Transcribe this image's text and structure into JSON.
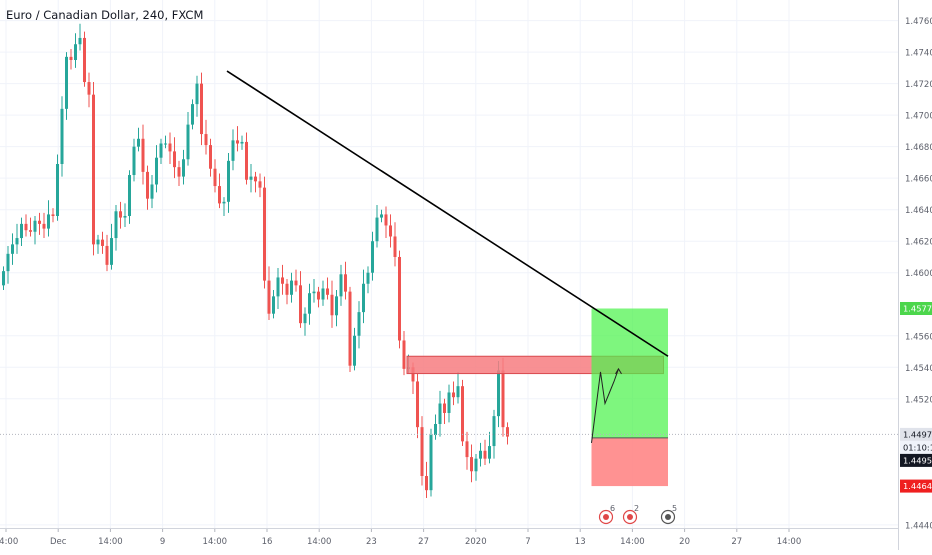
{
  "header": {
    "title": "Euro / Canadian Dollar, 240, FXCM"
  },
  "colors": {
    "up": "#26a69a",
    "down": "#ef5350",
    "grid": "#f0f3fa",
    "axis_text": "#5d606b",
    "trendline": "#000000",
    "resistance_zone": "#f77c80",
    "target_zone": "#4cf24c",
    "stop_zone": "#ff7f7f",
    "label_green": "#4cd64c",
    "label_red": "#ef1f1f",
    "label_dark": "#131722"
  },
  "price_labels": {
    "target": "1.45773",
    "current": "1.44974",
    "countdown": "01:10:16",
    "entry": "1.44952",
    "stop": "1.44646"
  },
  "events": [
    {
      "icon": "dividend-event-icon",
      "count": "6"
    },
    {
      "icon": "earnings-event-icon",
      "count": "2"
    },
    {
      "icon": "news-event-icon",
      "count": "5"
    }
  ],
  "chart_data": {
    "type": "candlestick",
    "symbol": "Euro / Canadian Dollar",
    "interval": "240",
    "source": "FXCM",
    "ylim": [
      1.4438,
      1.4768
    ],
    "y_ticks": [
      "1.47600",
      "1.47400",
      "1.47200",
      "1.47000",
      "1.46800",
      "1.46600",
      "1.46400",
      "1.46200",
      "1.46000",
      "1.45600",
      "1.45400",
      "1.45200",
      "1.44400"
    ],
    "x_ticks": [
      "14:00",
      "Dec",
      "14:00",
      "9",
      "14:00",
      "16",
      "14:00",
      "23",
      "27",
      "2020",
      "7",
      "13",
      "14:00",
      "20",
      "27",
      "14:00"
    ],
    "closes": [
      1.4601,
      1.4612,
      1.4618,
      1.4622,
      1.4631,
      1.4627,
      1.4626,
      1.4633,
      1.4631,
      1.4628,
      1.4637,
      1.4636,
      1.4669,
      1.4704,
      1.4737,
      1.4735,
      1.4745,
      1.4749,
      1.4721,
      1.4713,
      1.4618,
      1.4621,
      1.4617,
      1.4605,
      1.4622,
      1.4639,
      1.4635,
      1.4636,
      1.4662,
      1.468,
      1.4685,
      1.4664,
      1.4647,
      1.4656,
      1.4673,
      1.4682,
      1.4682,
      1.4677,
      1.4667,
      1.4661,
      1.4672,
      1.4694,
      1.4707,
      1.472,
      1.4688,
      1.4681,
      1.4666,
      1.4655,
      1.4644,
      1.4645,
      1.4671,
      1.4684,
      1.4682,
      1.4683,
      1.4659,
      1.4661,
      1.4658,
      1.4654,
      1.4595,
      1.4574,
      1.4585,
      1.4597,
      1.4593,
      1.4586,
      1.4595,
      1.4592,
      1.4568,
      1.4574,
      1.4587,
      1.4588,
      1.4583,
      1.459,
      1.4586,
      1.4573,
      1.4585,
      1.4599,
      1.4588,
      1.4541,
      1.456,
      1.4575,
      1.4593,
      1.46,
      1.462,
      1.4635,
      1.4637,
      1.463,
      1.4623,
      1.461,
      1.4557,
      1.4539,
      1.454,
      1.4531,
      1.4502,
      1.4471,
      1.4462,
      1.4497,
      1.4504,
      1.4517,
      1.4511,
      1.4524,
      1.4521,
      1.4528,
      1.4493,
      1.4483,
      1.4474,
      1.4482,
      1.4487,
      1.4482,
      1.449,
      1.4509,
      1.4538,
      1.4502,
      1.4496
    ],
    "annotations": {
      "trendline": {
        "from": {
          "index": 50,
          "price": 1.4728
        },
        "to": {
          "index": 148,
          "price": 1.4547
        }
      },
      "resistance_zone": {
        "from_index": 90,
        "to_index": 147,
        "top": 1.4547,
        "bottom": 1.4536
      },
      "long_position": {
        "from_index": 131,
        "to_index": 148,
        "entry": 1.44952,
        "target": 1.45773,
        "stop": 1.44646
      },
      "projected_path": [
        [
          131,
          1.4492
        ],
        [
          133,
          1.4537
        ],
        [
          134,
          1.4517
        ],
        [
          135,
          1.4524
        ],
        [
          136,
          1.4531
        ],
        [
          137,
          1.4539
        ]
      ]
    }
  }
}
